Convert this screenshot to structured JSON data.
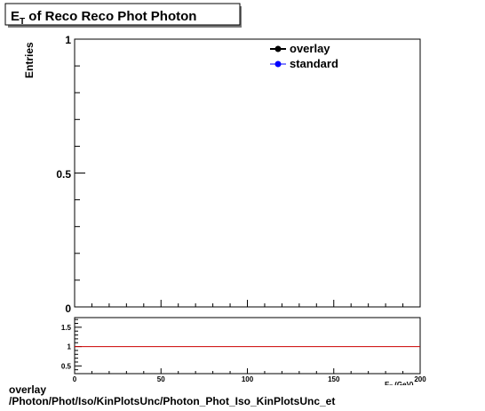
{
  "chart_data": [
    {
      "type": "line",
      "title": "E_T of Reco Reco Phot Photon",
      "title_main": "E",
      "title_sub": "T",
      "title_rest": " of Reco Reco Phot Photon",
      "ylabel": "Entries",
      "xlabel": "E_T (GeV)",
      "xlabel_main": "E",
      "xlabel_sub": "T",
      "xlabel_rest": " (GeV)",
      "xlim": [
        0,
        200
      ],
      "ylim": [
        0,
        1
      ],
      "y_tick_labels": [
        "0",
        "0.5",
        "1"
      ],
      "grid": false,
      "legend_position": "top-right",
      "series": [
        {
          "name": "overlay",
          "color": "#000000",
          "marker": "filled-circle",
          "x": [],
          "y": []
        },
        {
          "name": "standard",
          "color": "#0000ff",
          "marker": "filled-circle",
          "x": [],
          "y": []
        }
      ]
    },
    {
      "type": "line",
      "xlim": [
        0,
        200
      ],
      "ylim": [
        0.3,
        1.75
      ],
      "x_tick_labels": [
        "0",
        "50",
        "100",
        "150",
        "200"
      ],
      "y_tick_labels": [
        "0.5",
        "1",
        "1.5"
      ],
      "reference_line": {
        "y": 1,
        "color": "#cc0000"
      },
      "grid": false
    }
  ],
  "footer": {
    "line1": "overlay",
    "line2": "/Photon/Phot/Iso/KinPlotsUnc/Photon_Phot_Iso_KinPlotsUnc_et"
  }
}
